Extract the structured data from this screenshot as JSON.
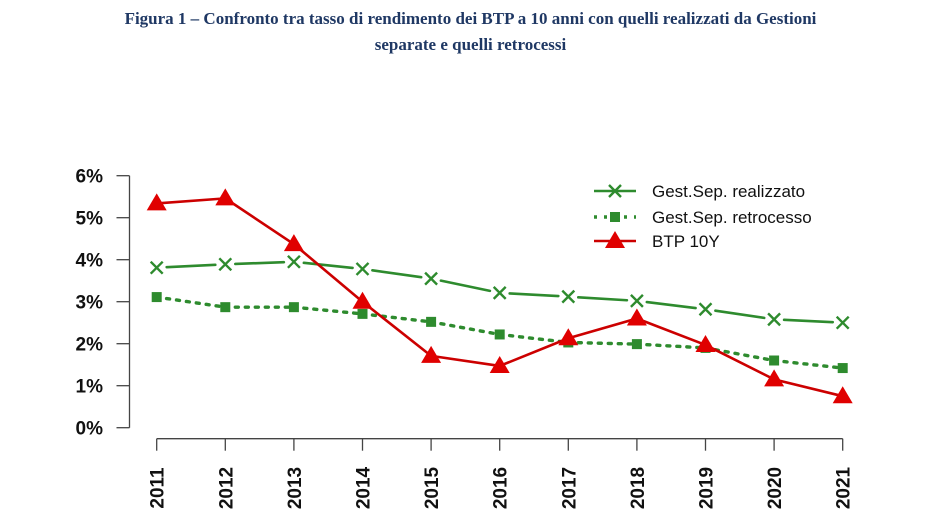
{
  "caption": {
    "line1": "Figura 1 – Confronto tra tasso di rendimento dei BTP a 10 anni con quelli realizzati da Gestioni",
    "line2": "separate e quelli retrocessi"
  },
  "chart_data": {
    "type": "line",
    "title": "Figura 1 – Confronto tra tasso di rendimento dei BTP a 10 anni con quelli realizzati da Gestioni separate e quelli retrocessi",
    "xlabel": "",
    "ylabel": "",
    "categories": [
      "2011",
      "2012",
      "2013",
      "2014",
      "2015",
      "2016",
      "2017",
      "2018",
      "2019",
      "2020",
      "2021"
    ],
    "ylim": [
      0,
      6
    ],
    "yticks": [
      0,
      1,
      2,
      3,
      4,
      5,
      6
    ],
    "ytick_labels": [
      "0%",
      "1%",
      "2%",
      "3%",
      "4%",
      "5%",
      "6%"
    ],
    "grid": false,
    "legend_position": "top-right",
    "series": [
      {
        "name": "Gest.Sep. realizzato",
        "marker": "x",
        "line": "dashed",
        "color": "#2e8b2e",
        "values": [
          3.81,
          3.89,
          3.95,
          3.78,
          3.55,
          3.21,
          3.12,
          3.02,
          2.82,
          2.58,
          2.5
        ]
      },
      {
        "name": "Gest.Sep. retrocesso",
        "marker": "square",
        "line": "dotted",
        "color": "#2e8b2e",
        "values": [
          3.11,
          2.87,
          2.87,
          2.71,
          2.52,
          2.22,
          2.03,
          1.99,
          1.9,
          1.6,
          1.42
        ]
      },
      {
        "name": "BTP 10Y",
        "marker": "triangle",
        "line": "solid",
        "color": "#e00000",
        "values": [
          5.34,
          5.46,
          4.37,
          3.0,
          1.71,
          1.47,
          2.13,
          2.6,
          1.97,
          1.15,
          0.75
        ]
      }
    ]
  }
}
